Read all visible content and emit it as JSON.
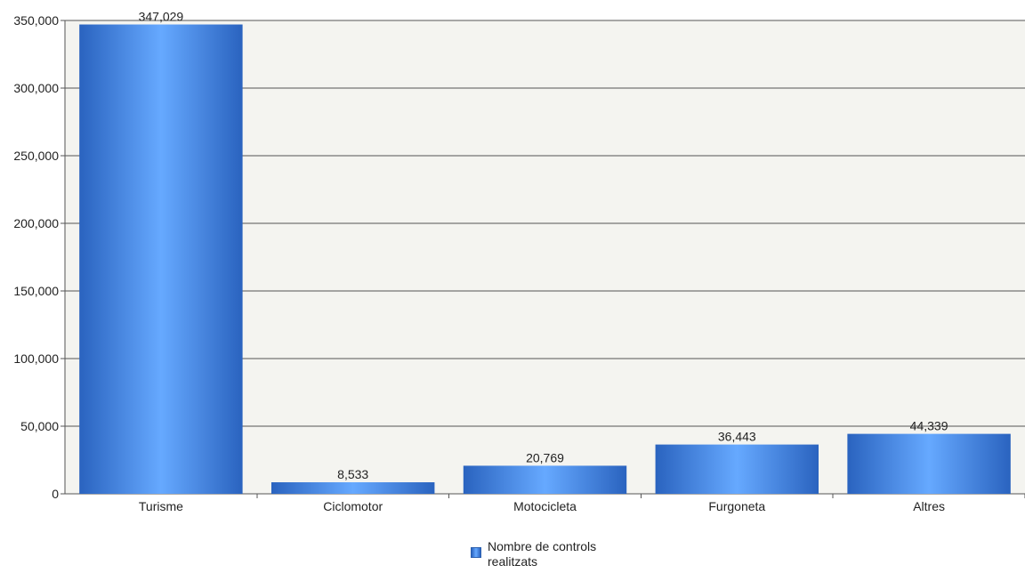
{
  "chart_data": {
    "type": "bar",
    "title": "",
    "xlabel": "",
    "ylabel": "",
    "categories": [
      "Turisme",
      "Ciclomotor",
      "Motocicleta",
      "Furgoneta",
      "Altres"
    ],
    "series": [
      {
        "name": "Nombre de controls realitzats",
        "values": [
          347029,
          8533,
          20769,
          36443,
          44339
        ],
        "data_labels": [
          "347,029",
          "8,533",
          "20,769",
          "36,443",
          "44,339"
        ]
      }
    ],
    "ylim": [
      0,
      350000
    ],
    "yticks": [
      0,
      50000,
      100000,
      150000,
      200000,
      250000,
      300000,
      350000
    ],
    "ytick_labels": [
      "0",
      "50,000",
      "100,000",
      "150,000",
      "200,000",
      "250,000",
      "300,000",
      "350,000"
    ],
    "grid": true,
    "legend_position": "bottom-center",
    "colors": {
      "plot_background": "#f4f4f0",
      "gridline": "#555555",
      "bar_dark": "#2a63bf",
      "bar_light": "#66a9ff"
    }
  }
}
